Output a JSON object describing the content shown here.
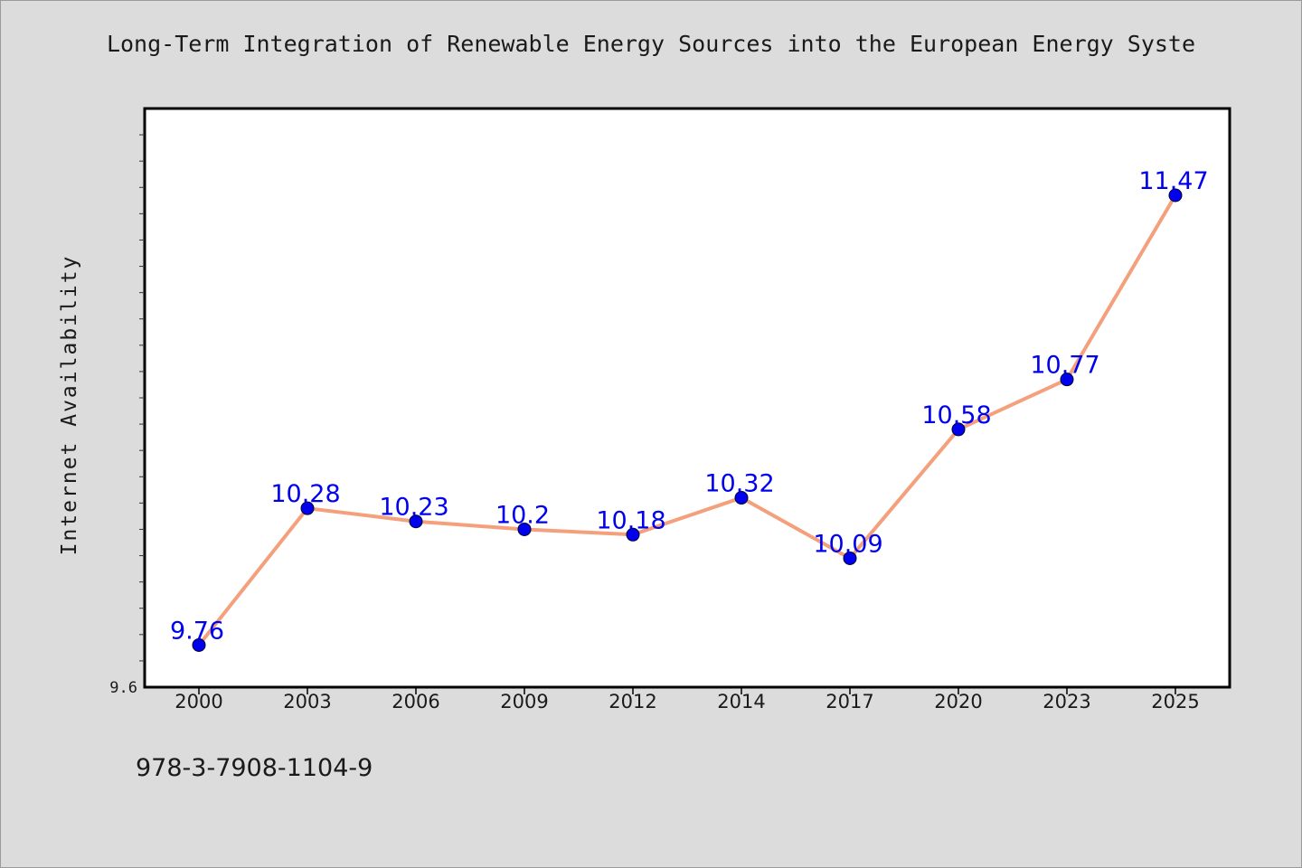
{
  "chart_data": {
    "type": "line",
    "title": "Long-Term Integration of Renewable Energy Sources into the European Energy Syste",
    "xlabel": "",
    "ylabel": "Internet Availability",
    "categories": [
      "2000",
      "2003",
      "2006",
      "2009",
      "2012",
      "2014",
      "2017",
      "2020",
      "2023",
      "2025"
    ],
    "values": [
      9.76,
      10.28,
      10.23,
      10.2,
      10.18,
      10.32,
      10.09,
      10.58,
      10.77,
      11.47
    ],
    "data_labels": [
      "9.76",
      "10.28",
      "10.23",
      "10.2",
      "10.18",
      "10.32",
      "10.09",
      "10.58",
      "10.77",
      "11.47"
    ],
    "ylim": [
      9.6,
      11.8
    ],
    "ytick_labels": [
      "9.6"
    ],
    "grid": false,
    "legend": "none",
    "colors": {
      "line": "#f4a07c",
      "marker": "#0000ee",
      "data_label": "#0000ee",
      "plot_background": "#ffffff",
      "page_background": "#dcdcdc"
    }
  },
  "footer": {
    "code": "978-3-7908-1104-9"
  }
}
